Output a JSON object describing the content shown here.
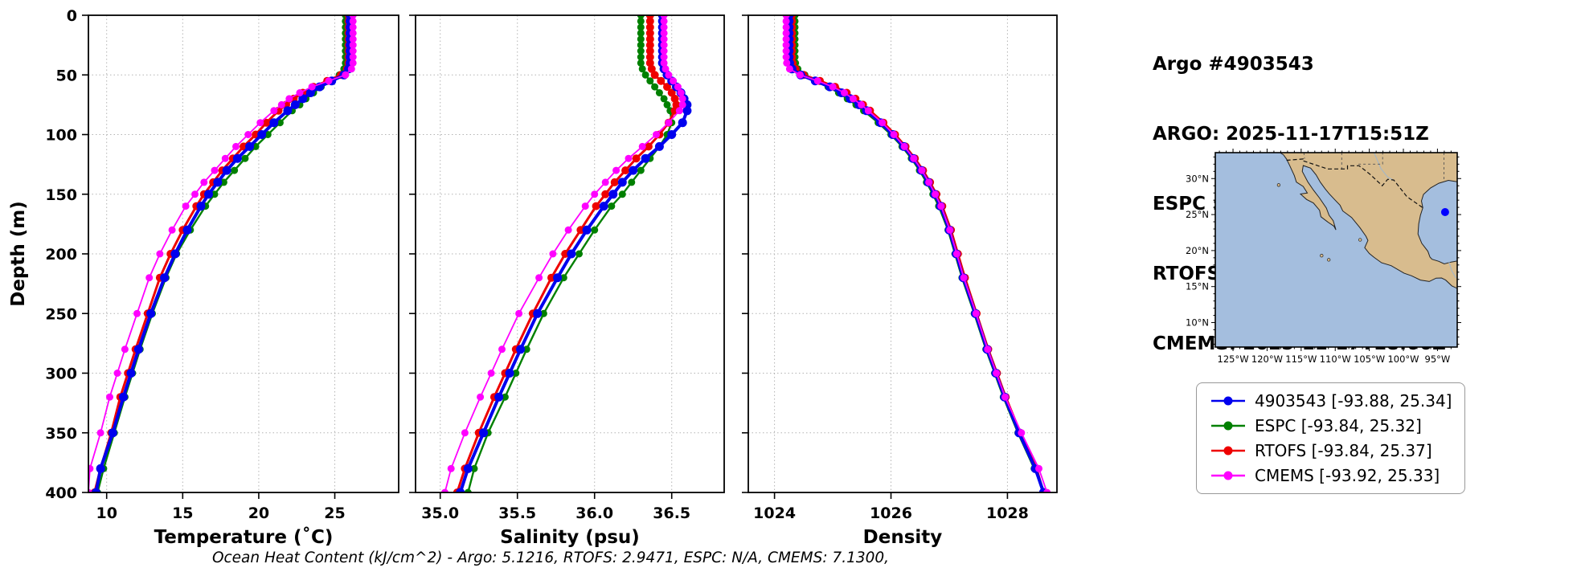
{
  "header": {
    "title": "Argo #4903543",
    "lines": [
      "ARGO: 2025-11-17T15:51Z",
      "ESPC : 2025-11-17T15:00Z",
      "RTOFS: 2025-11-17T18:00Z",
      "CMEMS: 2025-11-17T18:00Z"
    ]
  },
  "footer": {
    "ohc": "Ocean Heat Content (kJ/cm^2) - Argo: 5.1216,  RTOFS: 2.9471,  ESPC: N/A,  CMEMS: 7.1300,"
  },
  "legend": {
    "items": [
      {
        "label": "4903543 [-93.88, 25.34]",
        "color": "#0000ee"
      },
      {
        "label": "ESPC [-93.84, 25.32]",
        "color": "#008000"
      },
      {
        "label": "RTOFS [-93.84, 25.37]",
        "color": "#ee0000"
      },
      {
        "label": "CMEMS [-93.92, 25.33]",
        "color": "#ff00ff"
      }
    ]
  },
  "chart_data": {
    "type": "line",
    "draw_order": [
      "espc",
      "rtofs",
      "argo",
      "cmems"
    ],
    "series_style": {
      "argo": {
        "name": "4903543",
        "color": "#0000ee",
        "lw": 4,
        "r": 5.5
      },
      "espc": {
        "name": "ESPC",
        "color": "#008000",
        "lw": 2.4,
        "r": 4.5
      },
      "rtofs": {
        "name": "RTOFS",
        "color": "#ee0000",
        "lw": 3,
        "r": 5
      },
      "cmems": {
        "name": "CMEMS",
        "color": "#ff00ff",
        "lw": 1.8,
        "r": 4.5
      }
    },
    "profiles": {
      "ylabel": "Depth (m)",
      "ylim": [
        0,
        400
      ],
      "yticks": [
        0,
        50,
        100,
        150,
        200,
        250,
        300,
        350,
        400
      ],
      "depths": [
        0,
        5,
        10,
        15,
        20,
        25,
        30,
        35,
        40,
        45,
        50,
        55,
        60,
        65,
        70,
        75,
        80,
        90,
        100,
        110,
        120,
        130,
        140,
        150,
        160,
        180,
        200,
        220,
        250,
        280,
        300,
        320,
        350,
        380,
        400
      ],
      "panels": [
        {
          "key": "temperature",
          "xlabel": "Temperature (˚C)",
          "xlim": [
            8.8,
            29.2
          ],
          "xticks": [
            10,
            15,
            20,
            25
          ],
          "xtick_labels": [
            "10",
            "15",
            "20",
            "25"
          ],
          "series": {
            "argo": [
              26.0,
              26.0,
              26.0,
              26.0,
              26.0,
              26.0,
              26.0,
              26.0,
              26.0,
              25.9,
              25.6,
              24.8,
              24.0,
              23.4,
              22.9,
              22.4,
              21.9,
              21.0,
              20.2,
              19.4,
              18.6,
              17.9,
              17.3,
              16.7,
              16.2,
              15.3,
              14.5,
              13.8,
              12.9,
              12.1,
              11.6,
              11.1,
              10.4,
              9.6,
              9.3
            ],
            "espc": [
              25.7,
              25.7,
              25.7,
              25.7,
              25.7,
              25.7,
              25.7,
              25.7,
              25.7,
              25.6,
              25.3,
              24.7,
              24.1,
              23.6,
              23.1,
              22.7,
              22.2,
              21.4,
              20.6,
              19.8,
              19.1,
              18.4,
              17.7,
              17.1,
              16.5,
              15.5,
              14.6,
              13.9,
              13.0,
              12.2,
              11.7,
              11.2,
              10.5,
              9.8,
              9.4
            ],
            "rtofs": [
              25.9,
              25.9,
              25.9,
              25.9,
              25.9,
              25.9,
              25.9,
              25.9,
              25.9,
              25.8,
              25.4,
              24.5,
              23.6,
              22.9,
              22.3,
              21.8,
              21.3,
              20.5,
              19.8,
              19.0,
              18.3,
              17.6,
              17.0,
              16.4,
              15.9,
              15.0,
              14.2,
              13.5,
              12.7,
              11.9,
              11.4,
              10.9,
              10.3,
              9.6,
              9.2
            ],
            "cmems": [
              26.2,
              26.2,
              26.2,
              26.2,
              26.2,
              26.2,
              26.2,
              26.2,
              26.2,
              26.1,
              25.7,
              24.6,
              23.5,
              22.7,
              22.0,
              21.5,
              21.0,
              20.1,
              19.3,
              18.5,
              17.8,
              17.1,
              16.4,
              15.8,
              15.2,
              14.3,
              13.5,
              12.8,
              12.0,
              11.2,
              10.7,
              10.2,
              9.6,
              8.9,
              8.8
            ]
          }
        },
        {
          "key": "salinity",
          "xlabel": "Salinity (psu)",
          "xlim": [
            34.84,
            36.84
          ],
          "xticks": [
            35.0,
            35.5,
            36.0,
            36.5
          ],
          "xtick_labels": [
            "35.0",
            "35.5",
            "36.0",
            "36.5"
          ],
          "series": {
            "argo": [
              36.44,
              36.44,
              36.44,
              36.44,
              36.44,
              36.44,
              36.44,
              36.44,
              36.44,
              36.45,
              36.47,
              36.5,
              36.53,
              36.56,
              36.58,
              36.6,
              36.6,
              36.57,
              36.5,
              36.42,
              36.33,
              36.25,
              36.18,
              36.12,
              36.06,
              35.95,
              35.85,
              35.76,
              35.63,
              35.52,
              35.45,
              35.38,
              35.28,
              35.18,
              35.13
            ],
            "espc": [
              36.3,
              36.3,
              36.3,
              36.3,
              36.3,
              36.3,
              36.3,
              36.3,
              36.3,
              36.31,
              36.33,
              36.36,
              36.39,
              36.42,
              36.45,
              36.47,
              36.49,
              36.5,
              36.47,
              36.42,
              36.36,
              36.3,
              36.24,
              36.18,
              36.11,
              36.0,
              35.9,
              35.8,
              35.67,
              35.56,
              35.49,
              35.42,
              35.31,
              35.22,
              35.18
            ],
            "rtofs": [
              36.36,
              36.36,
              36.36,
              36.36,
              36.36,
              36.36,
              36.36,
              36.36,
              36.36,
              36.37,
              36.39,
              36.43,
              36.47,
              36.5,
              36.52,
              36.53,
              36.52,
              36.48,
              36.42,
              36.35,
              36.27,
              36.2,
              36.13,
              36.07,
              36.01,
              35.91,
              35.81,
              35.72,
              35.6,
              35.49,
              35.42,
              35.35,
              35.25,
              35.16,
              35.11
            ],
            "cmems": [
              36.45,
              36.45,
              36.45,
              36.45,
              36.45,
              36.45,
              36.45,
              36.45,
              36.45,
              36.46,
              36.48,
              36.51,
              36.54,
              36.56,
              36.57,
              36.57,
              36.55,
              36.48,
              36.4,
              36.31,
              36.22,
              36.14,
              36.07,
              36.0,
              35.94,
              35.83,
              35.73,
              35.64,
              35.51,
              35.4,
              35.33,
              35.26,
              35.16,
              35.07,
              35.03
            ]
          }
        },
        {
          "key": "density",
          "xlabel": "Density",
          "xlim": [
            1023.55,
            1028.85
          ],
          "xticks": [
            1024,
            1026,
            1028
          ],
          "xtick_labels": [
            "1024",
            "1026",
            "1028"
          ],
          "series": {
            "argo": [
              1024.25,
              1024.25,
              1024.25,
              1024.25,
              1024.25,
              1024.25,
              1024.25,
              1024.25,
              1024.26,
              1024.3,
              1024.45,
              1024.7,
              1024.95,
              1025.15,
              1025.3,
              1025.45,
              1025.58,
              1025.82,
              1026.03,
              1026.22,
              1026.38,
              1026.52,
              1026.64,
              1026.75,
              1026.85,
              1027.0,
              1027.12,
              1027.24,
              1027.45,
              1027.65,
              1027.8,
              1027.95,
              1028.2,
              1028.48,
              1028.62
            ],
            "espc": [
              1024.35,
              1024.35,
              1024.35,
              1024.35,
              1024.35,
              1024.35,
              1024.35,
              1024.35,
              1024.36,
              1024.4,
              1024.52,
              1024.72,
              1024.92,
              1025.1,
              1025.25,
              1025.4,
              1025.53,
              1025.78,
              1026.0,
              1026.19,
              1026.35,
              1026.49,
              1026.61,
              1026.72,
              1026.82,
              1026.98,
              1027.1,
              1027.22,
              1027.43,
              1027.63,
              1027.78,
              1027.93,
              1028.18,
              1028.46,
              1028.64
            ],
            "rtofs": [
              1024.3,
              1024.3,
              1024.3,
              1024.3,
              1024.3,
              1024.3,
              1024.3,
              1024.3,
              1024.31,
              1024.36,
              1024.5,
              1024.78,
              1025.04,
              1025.24,
              1025.39,
              1025.52,
              1025.64,
              1025.87,
              1026.07,
              1026.25,
              1026.41,
              1026.55,
              1026.67,
              1026.78,
              1026.88,
              1027.03,
              1027.15,
              1027.27,
              1027.47,
              1027.67,
              1027.82,
              1027.97,
              1028.22,
              1028.5,
              1028.62
            ],
            "cmems": [
              1024.2,
              1024.2,
              1024.2,
              1024.2,
              1024.2,
              1024.2,
              1024.2,
              1024.2,
              1024.21,
              1024.26,
              1024.44,
              1024.74,
              1025.0,
              1025.2,
              1025.35,
              1025.49,
              1025.61,
              1025.85,
              1026.05,
              1026.23,
              1026.39,
              1026.53,
              1026.65,
              1026.76,
              1026.86,
              1027.01,
              1027.13,
              1027.25,
              1027.46,
              1027.66,
              1027.81,
              1027.96,
              1028.24,
              1028.54,
              1028.68
            ]
          }
        }
      ]
    }
  },
  "map": {
    "extent": {
      "lon": [
        -127.6,
        -92.1
      ],
      "lat": [
        6.6,
        33.6
      ]
    },
    "lat_ticks": [
      10,
      15,
      20,
      25,
      30
    ],
    "lat_tick_labels": [
      "10°N",
      "15°N",
      "20°N",
      "25°N",
      "30°N"
    ],
    "lon_ticks": [
      -125,
      -120,
      -115,
      -110,
      -105,
      -100,
      -95
    ],
    "lon_tick_labels": [
      "125°W",
      "120°W",
      "115°W",
      "110°W",
      "105°W",
      "100°W",
      "95°W"
    ],
    "ocean_color": "#a4bede",
    "land_color": "#d8bc8e",
    "marker": {
      "lon": -93.88,
      "lat": 25.34,
      "color": "#0000ff"
    },
    "land": [
      [
        -118.1,
        33.6
      ],
      [
        -117.6,
        33.3
      ],
      [
        -117.15,
        32.72
      ],
      [
        -116.7,
        31.85
      ],
      [
        -116.0,
        30.4
      ],
      [
        -115.7,
        29.5
      ],
      [
        -114.7,
        28.9
      ],
      [
        -114.1,
        28.0
      ],
      [
        -115.1,
        27.85
      ],
      [
        -114.2,
        27.1
      ],
      [
        -113.2,
        26.6
      ],
      [
        -112.3,
        25.6
      ],
      [
        -112.1,
        24.7
      ],
      [
        -111.0,
        23.9
      ],
      [
        -110.2,
        23.4
      ],
      [
        -109.9,
        22.88
      ],
      [
        -110.3,
        24.15
      ],
      [
        -110.9,
        24.9
      ],
      [
        -111.3,
        25.9
      ],
      [
        -112.3,
        27.3
      ],
      [
        -113.2,
        28.4
      ],
      [
        -114.0,
        29.5
      ],
      [
        -114.84,
        31.0
      ],
      [
        -114.7,
        31.8
      ],
      [
        -113.6,
        31.45
      ],
      [
        -112.8,
        30.5
      ],
      [
        -112.2,
        29.5
      ],
      [
        -111.5,
        28.6
      ],
      [
        -110.9,
        27.9
      ],
      [
        -110.0,
        27.0
      ],
      [
        -109.3,
        26.3
      ],
      [
        -108.9,
        25.5
      ],
      [
        -107.6,
        24.6
      ],
      [
        -106.4,
        23.2
      ],
      [
        -105.5,
        22.0
      ],
      [
        -105.2,
        21.4
      ],
      [
        -105.67,
        20.4
      ],
      [
        -105.0,
        19.6
      ],
      [
        -104.3,
        19.05
      ],
      [
        -103.2,
        18.3
      ],
      [
        -101.8,
        17.9
      ],
      [
        -99.9,
        16.85
      ],
      [
        -98.8,
        16.5
      ],
      [
        -97.5,
        15.9
      ],
      [
        -96.2,
        15.7
      ],
      [
        -95.2,
        16.17
      ],
      [
        -94.4,
        16.2
      ],
      [
        -93.8,
        15.9
      ],
      [
        -92.9,
        15.1
      ],
      [
        -92.1,
        14.75
      ],
      [
        -92.1,
        18.55
      ],
      [
        -93.0,
        18.4
      ],
      [
        -94.0,
        18.15
      ],
      [
        -94.8,
        18.5
      ],
      [
        -95.8,
        18.8
      ],
      [
        -96.1,
        19.1
      ],
      [
        -96.4,
        19.9
      ],
      [
        -97.3,
        21.0
      ],
      [
        -97.85,
        22.3
      ],
      [
        -97.75,
        23.7
      ],
      [
        -97.5,
        24.9
      ],
      [
        -97.15,
        25.95
      ],
      [
        -97.35,
        26.9
      ],
      [
        -97.05,
        27.8
      ],
      [
        -96.0,
        28.7
      ],
      [
        -94.8,
        29.35
      ],
      [
        -93.4,
        29.75
      ],
      [
        -92.1,
        29.55
      ],
      [
        -92.1,
        33.6
      ]
    ],
    "border": [
      [
        -117.15,
        32.54
      ],
      [
        -114.72,
        32.72
      ],
      [
        -114.8,
        32.5
      ],
      [
        -111.1,
        31.33
      ],
      [
        -108.2,
        31.33
      ],
      [
        -108.2,
        31.78
      ],
      [
        -106.5,
        31.78
      ],
      [
        -104.9,
        30.6
      ],
      [
        -103.1,
        29.0
      ],
      [
        -102.3,
        29.9
      ],
      [
        -101.4,
        29.8
      ],
      [
        -99.5,
        27.5
      ],
      [
        -97.15,
        25.95
      ]
    ],
    "state_borders": [
      [
        [
          -109.05,
          33.6
        ],
        [
          -109.05,
          31.33
        ]
      ],
      [
        [
          -106.6,
          32.0
        ],
        [
          -103.05,
          32.0
        ],
        [
          -103.05,
          33.6
        ]
      ],
      [
        [
          -94.05,
          33.6
        ],
        [
          -94.05,
          29.7
        ]
      ],
      [
        [
          -114.6,
          33.6
        ],
        [
          -114.5,
          32.75
        ]
      ]
    ],
    "rivers": [
      [
        [
          -104.3,
          33.6
        ],
        [
          -103.3,
          31.4
        ],
        [
          -102.3,
          30.2
        ],
        [
          -101.5,
          29.8
        ]
      ],
      [
        [
          -93.3,
          18.4
        ],
        [
          -92.9,
          17.2
        ],
        [
          -92.3,
          16.2
        ]
      ]
    ],
    "islands": [
      [
        -118.3,
        29.1
      ],
      [
        -110.95,
        18.72
      ],
      [
        -106.35,
        21.5
      ],
      [
        -112.0,
        19.3
      ]
    ]
  }
}
